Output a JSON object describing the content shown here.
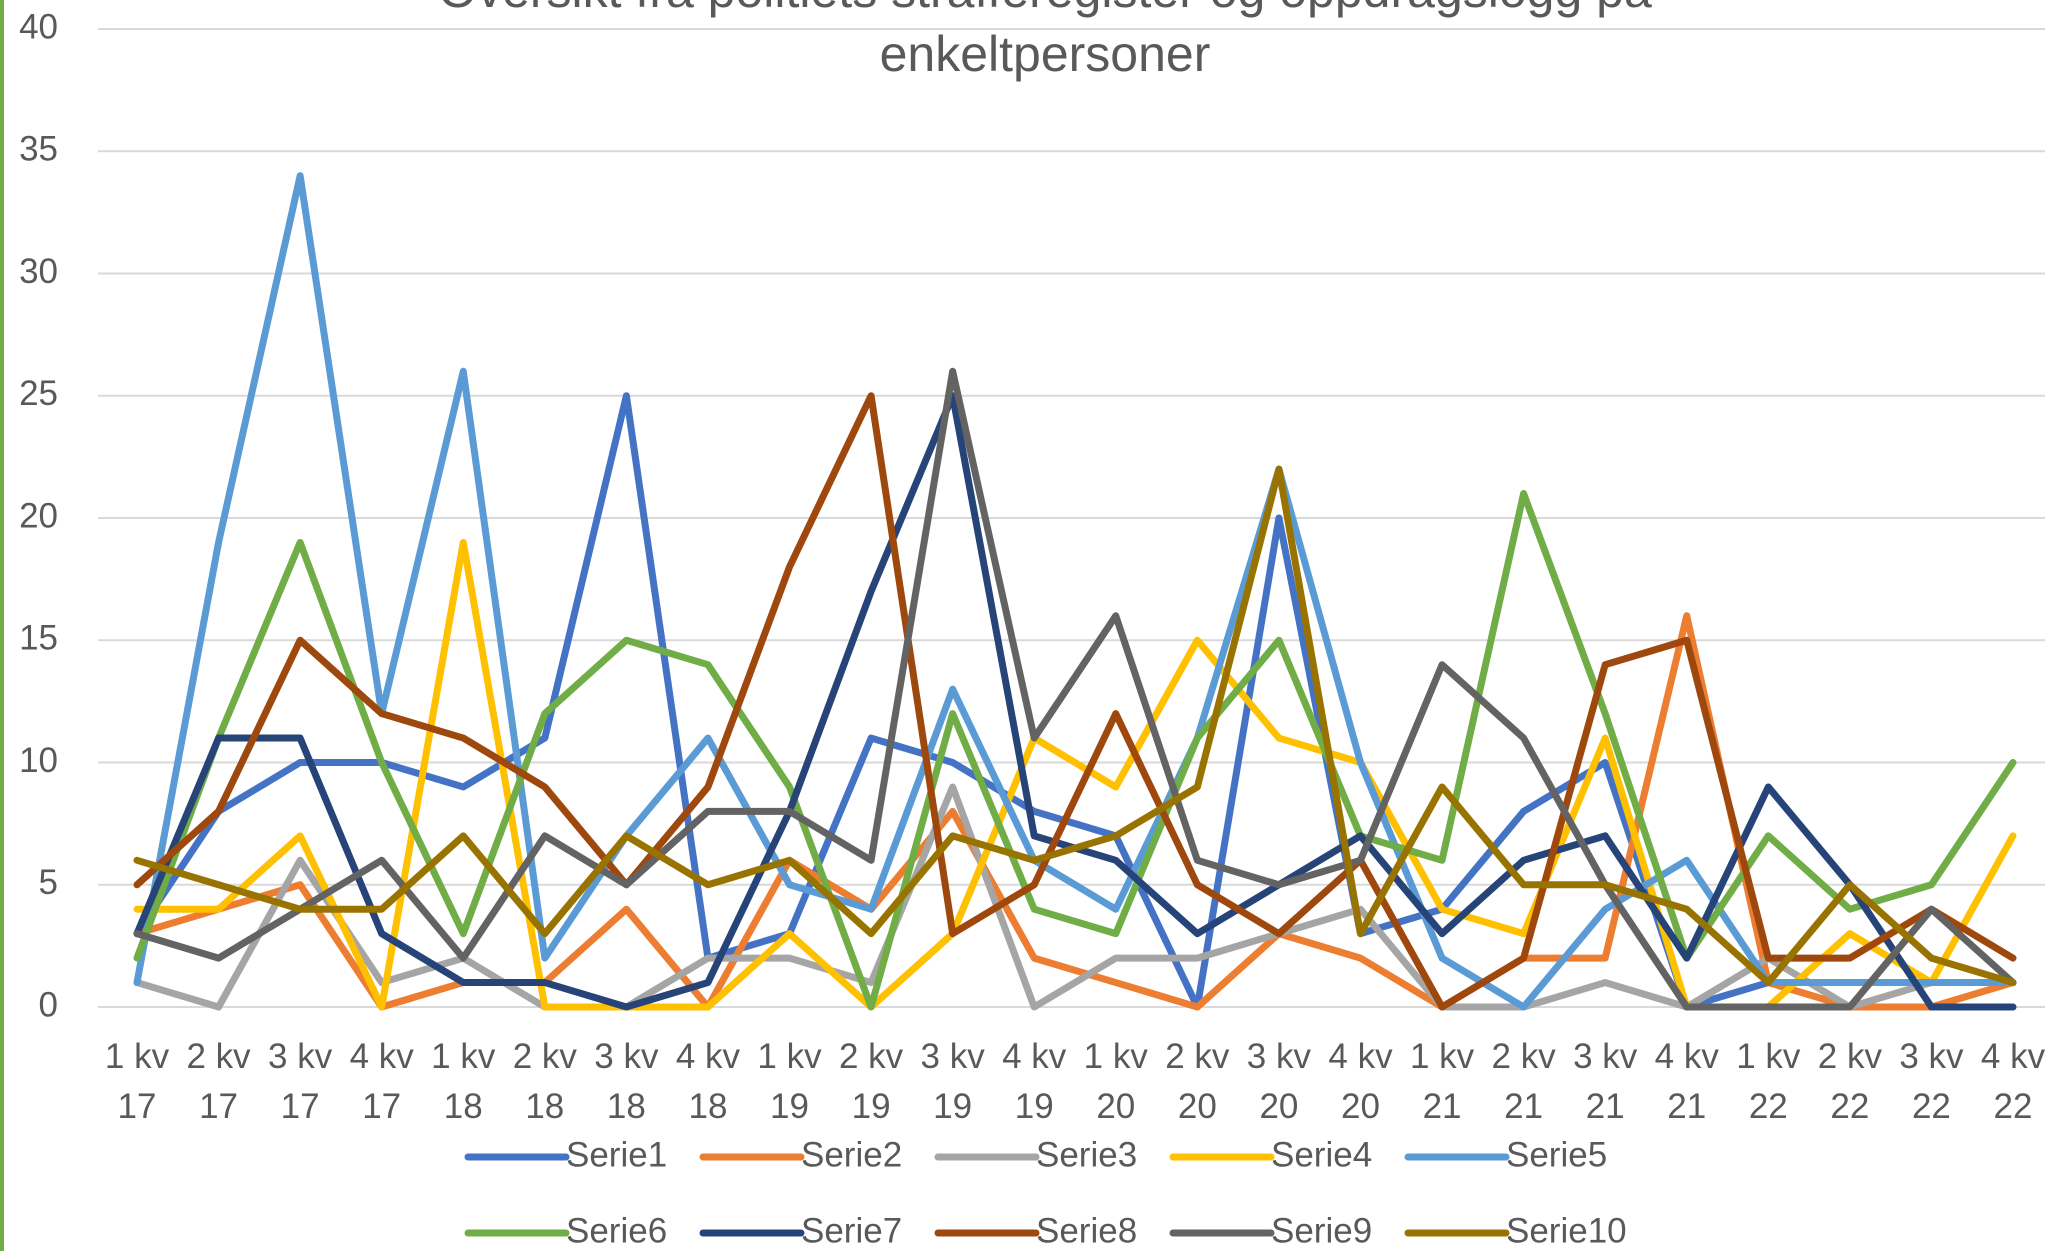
{
  "chart_data": {
    "type": "line",
    "title": "Oversikt fra politiets strafferegister og oppdragslogg på enkeltpersoner",
    "categories": [
      "1 kv 17",
      "2 kv 17",
      "3 kv 17",
      "4 kv 17",
      "1 kv 18",
      "2 kv 18",
      "3 kv 18",
      "4 kv 18",
      "1 kv 19",
      "2 kv 19",
      "3 kv 19",
      "4 kv 19",
      "1 kv 20",
      "2 kv 20",
      "3 kv 20",
      "4 kv 20",
      "1 kv 21",
      "2 kv 21",
      "3 kv 21",
      "4 kv 21",
      "1 kv 22",
      "2 kv 22",
      "3 kv 22",
      "4 kv 22"
    ],
    "series": [
      {
        "name": "Serie1",
        "color": "#4472c4",
        "values": [
          3,
          8,
          10,
          10,
          9,
          11,
          25,
          2,
          3,
          11,
          10,
          8,
          7,
          0,
          20,
          3,
          4,
          8,
          10,
          0,
          1,
          1,
          1,
          1
        ]
      },
      {
        "name": "Serie2",
        "color": "#ed7d31",
        "values": [
          3,
          4,
          5,
          0,
          1,
          1,
          4,
          0,
          6,
          4,
          8,
          2,
          1,
          0,
          3,
          2,
          0,
          2,
          2,
          16,
          1,
          0,
          0,
          1
        ]
      },
      {
        "name": "Serie3",
        "color": "#a5a5a5",
        "values": [
          1,
          0,
          6,
          1,
          2,
          0,
          0,
          2,
          2,
          1,
          9,
          0,
          2,
          2,
          3,
          4,
          0,
          0,
          1,
          0,
          2,
          0,
          1,
          1
        ]
      },
      {
        "name": "Serie4",
        "color": "#ffc000",
        "values": [
          4,
          4,
          7,
          0,
          19,
          0,
          0,
          0,
          3,
          0,
          3,
          11,
          9,
          15,
          11,
          10,
          4,
          3,
          11,
          0,
          0,
          3,
          1,
          7
        ]
      },
      {
        "name": "Serie5",
        "color": "#5b9bd5",
        "values": [
          1,
          19,
          34,
          12,
          26,
          2,
          7,
          11,
          5,
          4,
          13,
          6,
          4,
          11,
          22,
          10,
          2,
          0,
          4,
          6,
          1,
          1,
          1,
          1
        ]
      },
      {
        "name": "Serie6",
        "color": "#70ad47",
        "values": [
          2,
          11,
          19,
          10,
          3,
          12,
          15,
          14,
          9,
          0,
          12,
          4,
          3,
          11,
          15,
          7,
          6,
          21,
          12,
          2,
          7,
          4,
          5,
          10
        ]
      },
      {
        "name": "Serie7",
        "color": "#264478",
        "values": [
          3,
          11,
          11,
          3,
          1,
          1,
          0,
          1,
          8,
          17,
          25,
          7,
          6,
          3,
          5,
          7,
          3,
          6,
          7,
          2,
          9,
          5,
          0,
          0
        ]
      },
      {
        "name": "Serie8",
        "color": "#9e480e",
        "values": [
          5,
          8,
          15,
          12,
          11,
          9,
          5,
          9,
          18,
          25,
          3,
          5,
          12,
          5,
          3,
          6,
          0,
          2,
          14,
          15,
          2,
          2,
          4,
          2
        ]
      },
      {
        "name": "Serie9",
        "color": "#636363",
        "values": [
          3,
          2,
          4,
          6,
          2,
          7,
          5,
          8,
          8,
          6,
          26,
          11,
          16,
          6,
          5,
          6,
          14,
          11,
          5,
          0,
          0,
          0,
          4,
          1
        ]
      },
      {
        "name": "Serie10",
        "color": "#997300",
        "values": [
          6,
          5,
          4,
          4,
          7,
          3,
          7,
          5,
          6,
          3,
          7,
          6,
          7,
          9,
          22,
          3,
          9,
          5,
          5,
          4,
          1,
          5,
          2,
          1
        ]
      }
    ],
    "ylim": [
      0,
      40
    ],
    "yticks": [
      0,
      5,
      10,
      15,
      20,
      25,
      30,
      35,
      40
    ],
    "grid": true,
    "legend": "bottom"
  }
}
